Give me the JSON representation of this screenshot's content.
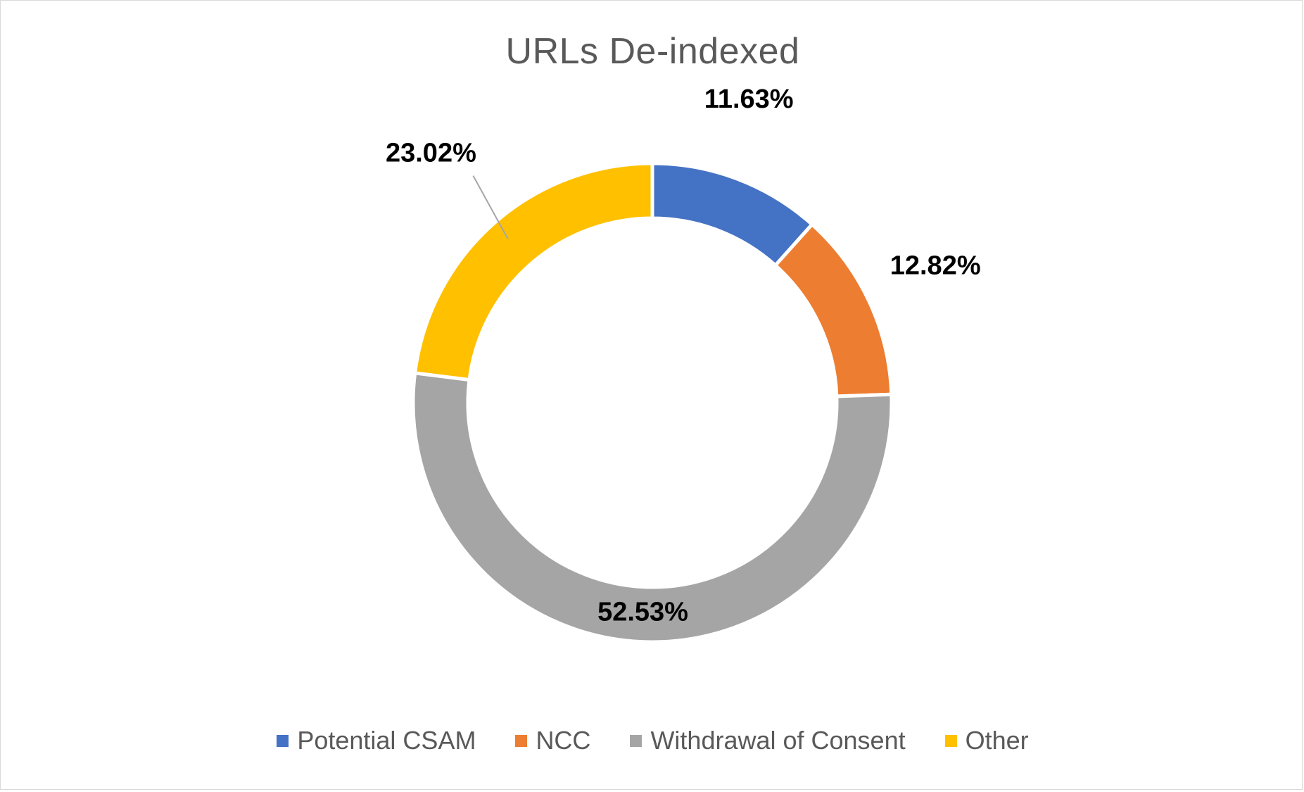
{
  "chart_data": {
    "type": "pie",
    "variant": "doughnut",
    "title": "URLs De-indexed",
    "categories": [
      "Potential CSAM",
      "NCC",
      "Withdrawal of Consent",
      "Other"
    ],
    "values": [
      11.63,
      12.82,
      52.53,
      23.02
    ],
    "data_labels": [
      "11.63%",
      "12.82%",
      "52.53%",
      "23.02%"
    ],
    "colors": [
      "#4472c4",
      "#ed7d31",
      "#a5a5a5",
      "#ffc000"
    ],
    "legend_position": "bottom",
    "start_angle": "top, clockwise"
  }
}
